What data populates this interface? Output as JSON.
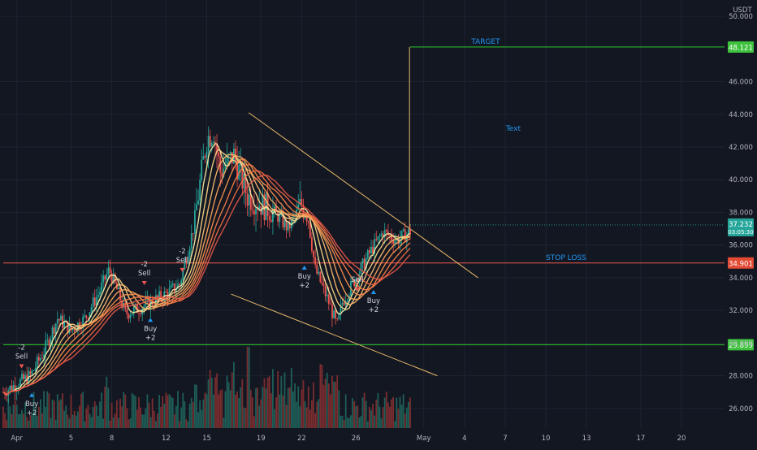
{
  "colors": {
    "background": "#131722",
    "grid": "#1f2330",
    "axis_text": "#b2b5be",
    "bull": "#26a69a",
    "bear": "#ef5350",
    "vol_bull": "#1e5e57",
    "vol_bear": "#7a2d2f",
    "target_line": "#2bd12b",
    "stop_line": "#f05a4a",
    "trend_line": "#e8b86a",
    "drawing_text": "#2196f3",
    "signal_text": "#d1d4dc",
    "current_price": "#26a69a",
    "ribbon": [
      "#fff1a8",
      "#ffd98a",
      "#ffc070",
      "#ffa95c",
      "#ff934f",
      "#ff7f48",
      "#f56b46",
      "#e85848"
    ]
  },
  "chart_data": {
    "type": "candlestick",
    "currency": "USDT",
    "ylim": [
      24.8,
      50.6
    ],
    "yticks": [
      "26.000",
      "28.000",
      "30.000",
      "32.000",
      "34.000",
      "36.000",
      "38.000",
      "40.000",
      "42.000",
      "44.000",
      "46.000",
      "50.000"
    ],
    "ytick_values": [
      26,
      28,
      30,
      32,
      34,
      36,
      38,
      40,
      42,
      44,
      46,
      50
    ],
    "xlim": [
      0,
      54
    ],
    "xtick_labels": [
      "Apr",
      "5",
      "8",
      "12",
      "15",
      "19",
      "22",
      "26",
      "May",
      "4",
      "7",
      "10",
      "13",
      "17",
      "20"
    ],
    "xtick_days": [
      1,
      5,
      8,
      12,
      15,
      19,
      22,
      26,
      31,
      34,
      37,
      40,
      43,
      47,
      50
    ],
    "price_path": [
      [
        0,
        27.0
      ],
      [
        1,
        27.5
      ],
      [
        2,
        28.0
      ],
      [
        3,
        29.5
      ],
      [
        4,
        31.5
      ],
      [
        5,
        30.8
      ],
      [
        6,
        31.5
      ],
      [
        7,
        33.0
      ],
      [
        7.8,
        34.5
      ],
      [
        8.5,
        33.0
      ],
      [
        9,
        31.8
      ],
      [
        10.2,
        32.2
      ],
      [
        12,
        33.0
      ],
      [
        13,
        33.6
      ],
      [
        14,
        37.0
      ],
      [
        15,
        42.5
      ],
      [
        15.5,
        43.0
      ],
      [
        16,
        40.5
      ],
      [
        17,
        41.5
      ],
      [
        18,
        39.0
      ],
      [
        19,
        38.5
      ],
      [
        20,
        38.0
      ],
      [
        21,
        37.0
      ],
      [
        22,
        38.5
      ],
      [
        22.5,
        37.5
      ],
      [
        23,
        34.5
      ],
      [
        24,
        32.5
      ],
      [
        24.6,
        31.0
      ],
      [
        25,
        32.5
      ],
      [
        26,
        34.0
      ],
      [
        27,
        35.5
      ],
      [
        28,
        36.8
      ],
      [
        29,
        36.3
      ],
      [
        30,
        36.8
      ]
    ],
    "current_price": "37.232",
    "countdown": "03:05:30",
    "signals": [
      {
        "label": "-2",
        "text": "Sell",
        "day": 1.35,
        "price": 28.8,
        "dir": "sell"
      },
      {
        "label": "Buy",
        "text": "+2",
        "day": 2.1,
        "price": 26.6,
        "dir": "buy"
      },
      {
        "label": "-2",
        "text": "Sell",
        "day": 10.4,
        "price": 33.9,
        "dir": "sell"
      },
      {
        "label": "Buy",
        "text": "+2",
        "day": 10.85,
        "price": 31.2,
        "dir": "buy"
      },
      {
        "label": "-2",
        "text": "Sell",
        "day": 13.2,
        "price": 34.7,
        "dir": "sell"
      },
      {
        "label": "Buy",
        "text": "+2",
        "day": 22.2,
        "price": 34.4,
        "dir": "buy"
      },
      {
        "label": "",
        "text": "Sell",
        "day": 26.1,
        "price": 33.5,
        "dir": "sell"
      },
      {
        "label": "Buy",
        "text": "+2",
        "day": 27.3,
        "price": 32.9,
        "dir": "buy"
      }
    ],
    "levels": [
      {
        "name": "target",
        "price": 48.121,
        "label": "48.121",
        "day_start": 30,
        "text": "TARGET"
      },
      {
        "name": "stop-loss",
        "price": 34.901,
        "label": "34.901",
        "day_start": 0,
        "text": "STOP LOSS"
      },
      {
        "name": "support",
        "price": 29.899,
        "label": "29.899",
        "day_start": 0,
        "text": ""
      }
    ],
    "trend_lines": [
      {
        "name": "upper-trendline",
        "points": [
          [
            18.1,
            44.1
          ],
          [
            35.0,
            34.0
          ]
        ]
      },
      {
        "name": "lower-trendline",
        "points": [
          [
            16.8,
            33.0
          ],
          [
            32.0,
            28.0
          ]
        ]
      },
      {
        "name": "target-projection",
        "points": [
          [
            29.95,
            36.8
          ],
          [
            29.95,
            48.121
          ]
        ]
      }
    ],
    "annotations": [
      {
        "text": "Text",
        "day": 37.6,
        "price": 43.0
      }
    ]
  }
}
